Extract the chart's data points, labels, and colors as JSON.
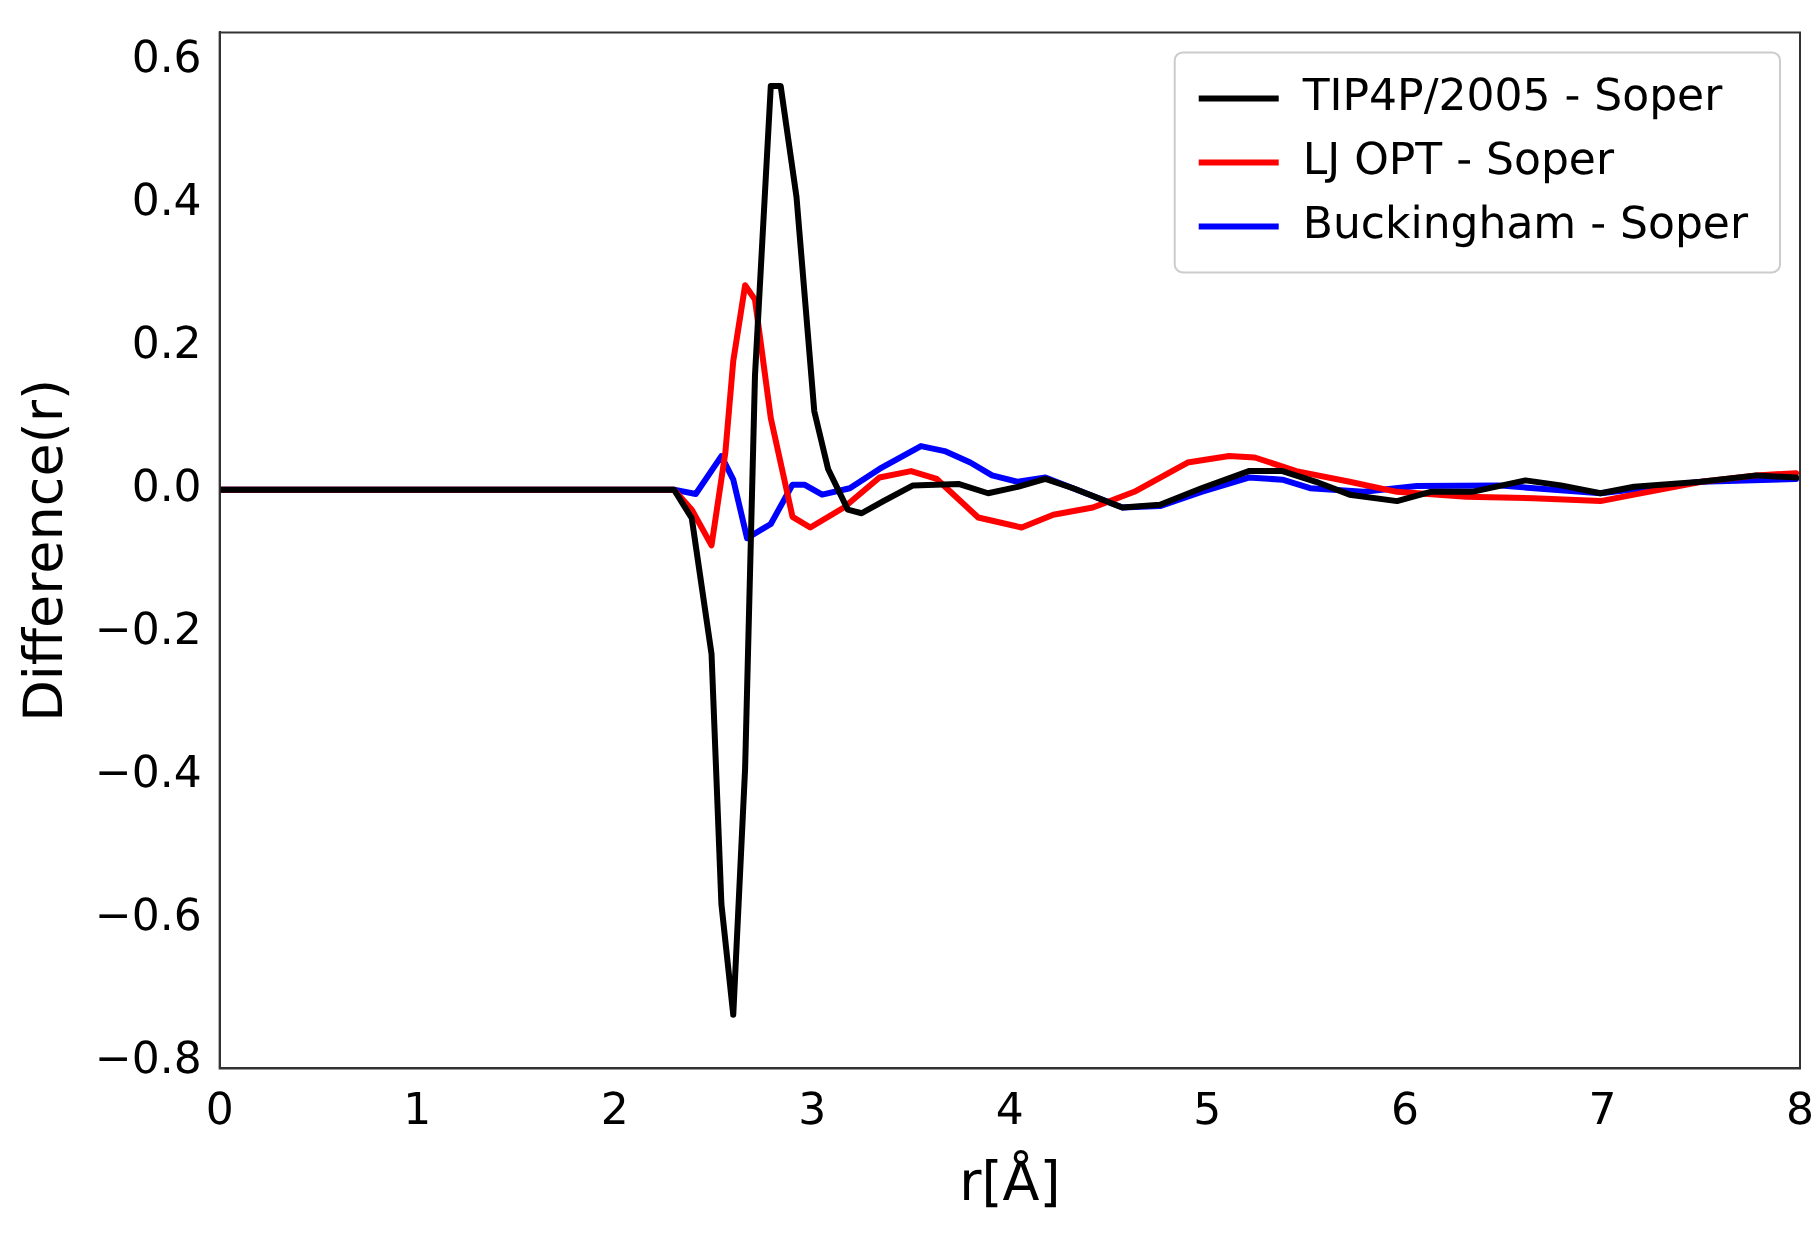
{
  "chart_data": {
    "type": "line",
    "xlabel": "r[Å]",
    "ylabel": "Difference(r)",
    "xlim": [
      0,
      8
    ],
    "xticks": [
      0,
      1,
      2,
      3,
      4,
      5,
      6,
      7,
      8
    ],
    "ylim": [
      -0.81,
      0.64
    ],
    "yticks": [
      {
        "value": -0.8,
        "label": "−0.8"
      },
      {
        "value": -0.6,
        "label": "−0.6"
      },
      {
        "value": -0.4,
        "label": "−0.4"
      },
      {
        "value": -0.2,
        "label": "−0.2"
      },
      {
        "value": 0,
        "label": "0.0"
      },
      {
        "value": 0.2,
        "label": "0.2"
      },
      {
        "value": 0.4,
        "label": "0.4"
      },
      {
        "value": 0.6,
        "label": "0.6"
      }
    ],
    "grid": false,
    "legend": "top right",
    "marker": "none",
    "line_style": "solid",
    "series": [
      {
        "name": "TIP4P/2005 - Soper",
        "color": "#000000",
        "x": [
          0,
          2.3,
          2.39,
          2.49,
          2.54,
          2.6,
          2.66,
          2.71,
          2.79,
          2.84,
          2.92,
          3.01,
          3.08,
          3.18,
          3.25,
          3.36,
          3.51,
          3.74,
          3.89,
          4.04,
          4.18,
          4.32,
          4.57,
          4.76,
          4.97,
          5.21,
          5.38,
          5.55,
          5.72,
          5.96,
          6.13,
          6.34,
          6.61,
          6.79,
          6.99,
          7.16,
          7.5,
          7.78,
          7.98
        ],
        "values": [
          0,
          0,
          -0.04,
          -0.23,
          -0.58,
          -0.735,
          -0.39,
          0.16,
          0.565,
          0.565,
          0.41,
          0.11,
          0.029,
          -0.028,
          -0.033,
          -0.016,
          0.006,
          0.008,
          -0.005,
          0.004,
          0.015,
          0.002,
          -0.025,
          -0.021,
          0.002,
          0.026,
          0.026,
          0.011,
          -0.007,
          -0.016,
          -0.003,
          -0.003,
          0.013,
          0.006,
          -0.005,
          0.004,
          0.011,
          0.02,
          0.017
        ]
      },
      {
        "name": "LJ OPT - Soper",
        "color": "#ff0000",
        "x": [
          0,
          2.3,
          2.39,
          2.49,
          2.56,
          2.6,
          2.66,
          2.71,
          2.79,
          2.9,
          2.99,
          3.16,
          3.34,
          3.5,
          3.63,
          3.84,
          4.06,
          4.22,
          4.42,
          4.63,
          4.9,
          5.11,
          5.24,
          5.45,
          5.72,
          5.96,
          6.31,
          6.65,
          6.99,
          7.16,
          7.5,
          7.78,
          7.98
        ],
        "values": [
          0,
          0,
          -0.028,
          -0.078,
          0.052,
          0.18,
          0.286,
          0.266,
          0.1,
          -0.038,
          -0.053,
          -0.025,
          0.017,
          0.026,
          0.015,
          -0.039,
          -0.053,
          -0.035,
          -0.025,
          -0.003,
          0.038,
          0.047,
          0.045,
          0.026,
          0.011,
          -0.003,
          -0.01,
          -0.012,
          -0.016,
          -0.007,
          0.011,
          0.02,
          0.023
        ]
      },
      {
        "name": "Buckingham - Soper",
        "color": "#0000ff",
        "x": [
          0,
          2.3,
          2.41,
          2.54,
          2.6,
          2.67,
          2.79,
          2.9,
          2.96,
          3.05,
          3.19,
          3.34,
          3.55,
          3.67,
          3.8,
          3.91,
          4.04,
          4.18,
          4.32,
          4.57,
          4.76,
          4.97,
          5.21,
          5.38,
          5.52,
          5.79,
          6.06,
          6.47,
          6.99,
          7.5,
          7.98
        ],
        "values": [
          0,
          0,
          -0.006,
          0.047,
          0.014,
          -0.068,
          -0.048,
          0.007,
          0.007,
          -0.007,
          0.002,
          0.029,
          0.061,
          0.054,
          0.038,
          0.02,
          0.011,
          0.017,
          0.002,
          -0.025,
          -0.023,
          -0.003,
          0.017,
          0.014,
          0.002,
          -0.003,
          0.005,
          0.006,
          -0.005,
          0.011,
          0.015
        ]
      }
    ]
  }
}
